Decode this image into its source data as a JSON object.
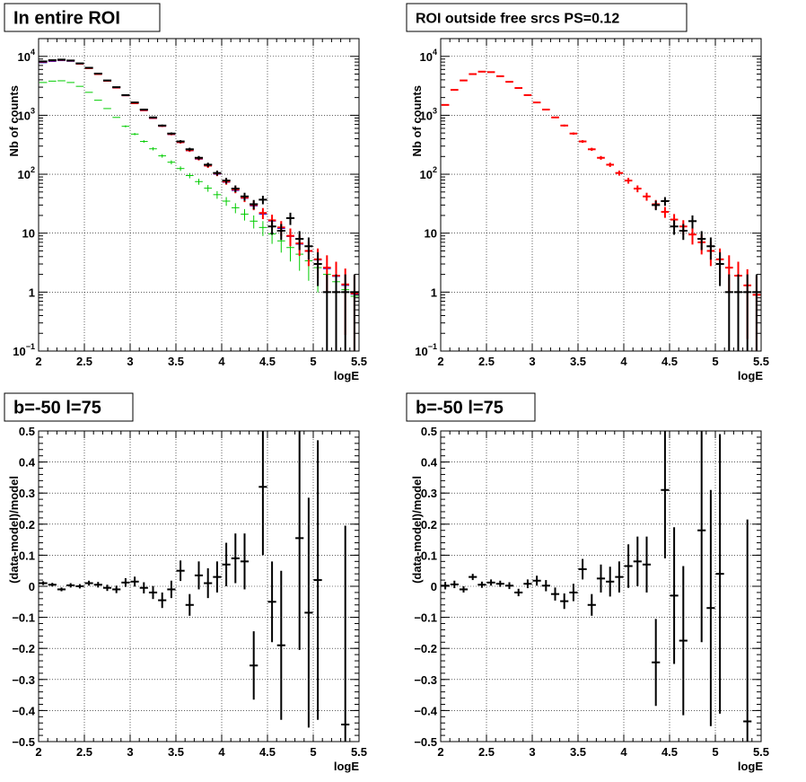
{
  "chart_data": [
    {
      "type": "scatter",
      "title": "In entire ROI",
      "xlabel": "logE",
      "ylabel": "Nb of counts",
      "xlim": [
        2,
        5.5
      ],
      "ylim": [
        0.1,
        20000
      ],
      "yscale": "log",
      "grid": true,
      "xticks": [
        "2",
        "2.5",
        "3",
        "3.5",
        "4",
        "4.5",
        "5",
        "5.5"
      ],
      "yticks": [
        {
          "value": 0.1,
          "mant": "10",
          "exp": "−1"
        },
        {
          "value": 1,
          "mant": "1",
          "exp": ""
        },
        {
          "value": 10,
          "mant": "10",
          "exp": ""
        },
        {
          "value": 100,
          "mant": "10",
          "exp": "2"
        },
        {
          "value": 1000,
          "mant": "10",
          "exp": "3"
        },
        {
          "value": 10000,
          "mant": "10",
          "exp": "4"
        }
      ],
      "colors": {
        "data": "#000000",
        "model": "#ff0000",
        "component_blue": "#0000ff",
        "component_green": "#00cc00"
      },
      "x": [
        2.05,
        2.15,
        2.25,
        2.35,
        2.45,
        2.55,
        2.65,
        2.75,
        2.85,
        2.95,
        3.05,
        3.15,
        3.25,
        3.35,
        3.45,
        3.55,
        3.65,
        3.75,
        3.85,
        3.95,
        4.05,
        4.15,
        4.25,
        4.35,
        4.45,
        4.55,
        4.65,
        4.75,
        4.85,
        4.95,
        5.05,
        5.15,
        5.25,
        5.35,
        5.45
      ],
      "series": [
        {
          "role": "data",
          "values": [
            8200,
            8600,
            8800,
            8500,
            7600,
            6400,
            5100,
            3900,
            3000,
            2200,
            1650,
            1250,
            920,
            670,
            490,
            360,
            265,
            190,
            145,
            105,
            78,
            57,
            42,
            31,
            23,
            17,
            13,
            9.5,
            7,
            5,
            3.6,
            2.6,
            1.9,
            1.3,
            0.9
          ]
        },
        {
          "role": "model",
          "values": [
            8100,
            8500,
            8700,
            8450,
            7500,
            6300,
            5000,
            3850,
            2950,
            2180,
            1600,
            1220,
            900,
            660,
            480,
            350,
            255,
            185,
            140,
            103,
            75,
            55,
            40,
            30,
            22,
            16.5,
            12.5,
            9,
            6.7,
            5,
            3.6,
            2.6,
            1.9,
            1.35,
            0.95
          ]
        },
        {
          "role": "component_blue",
          "values": [
            7800,
            8200,
            8450,
            8250,
            7400,
            6250,
            4950,
            3800,
            2900,
            2150,
            1580,
            1200,
            880,
            650,
            470,
            345,
            250,
            180,
            138,
            100,
            73,
            53,
            39,
            29,
            21,
            16,
            12,
            8.8,
            6.5,
            4.9,
            3.5,
            2.5,
            1.85,
            1.3,
            0.92
          ]
        },
        {
          "role": "component_green",
          "values": [
            3600,
            3800,
            3850,
            3600,
            3100,
            2450,
            1800,
            1300,
            920,
            650,
            480,
            360,
            270,
            205,
            160,
            125,
            95,
            75,
            58,
            45,
            35,
            27,
            21,
            16,
            12.5,
            9.7,
            7.4,
            5.7,
            4.4,
            3.4,
            2.6,
            2,
            1.5,
            1.1,
            0.85
          ]
        }
      ],
      "data_points": [
        {
          "x": 2.05,
          "y": 8200
        },
        {
          "x": 2.15,
          "y": 8600
        },
        {
          "x": 2.25,
          "y": 8800
        },
        {
          "x": 2.35,
          "y": 8500
        },
        {
          "x": 2.45,
          "y": 7600
        },
        {
          "x": 2.55,
          "y": 6400
        },
        {
          "x": 2.65,
          "y": 5100
        },
        {
          "x": 2.75,
          "y": 3900
        },
        {
          "x": 2.85,
          "y": 3000
        },
        {
          "x": 2.95,
          "y": 2200
        },
        {
          "x": 3.05,
          "y": 1650
        },
        {
          "x": 3.15,
          "y": 1250
        },
        {
          "x": 3.25,
          "y": 920
        },
        {
          "x": 3.35,
          "y": 670
        },
        {
          "x": 3.45,
          "y": 490
        },
        {
          "x": 3.55,
          "y": 360
        },
        {
          "x": 3.65,
          "y": 265
        },
        {
          "x": 3.75,
          "y": 190
        },
        {
          "x": 3.85,
          "y": 145
        },
        {
          "x": 3.95,
          "y": 105
        },
        {
          "x": 4.05,
          "y": 78
        },
        {
          "x": 4.15,
          "y": 57
        },
        {
          "x": 4.25,
          "y": 42
        },
        {
          "x": 4.35,
          "y": 31
        },
        {
          "x": 4.45,
          "y": 37
        },
        {
          "x": 4.55,
          "y": 13
        },
        {
          "x": 4.65,
          "y": 11
        },
        {
          "x": 4.75,
          "y": 18
        },
        {
          "x": 4.85,
          "y": 8
        },
        {
          "x": 4.95,
          "y": 6
        },
        {
          "x": 5.05,
          "y": 3
        },
        {
          "x": 5.15,
          "y": 1
        },
        {
          "x": 5.25,
          "y": 1
        },
        {
          "x": 5.35,
          "y": 1
        },
        {
          "x": 5.45,
          "y": 1
        }
      ]
    },
    {
      "type": "scatter",
      "title": "ROI outside free srcs PS=0.12",
      "xlabel": "logE",
      "ylabel": "Nb of counts",
      "xlim": [
        2,
        5.5
      ],
      "ylim": [
        0.1,
        20000
      ],
      "yscale": "log",
      "grid": true,
      "xticks": [
        "2",
        "2.5",
        "3",
        "3.5",
        "4",
        "4.5",
        "5",
        "5.5"
      ],
      "yticks": [
        {
          "value": 0.1,
          "mant": "10",
          "exp": "−1"
        },
        {
          "value": 1,
          "mant": "1",
          "exp": ""
        },
        {
          "value": 10,
          "mant": "10",
          "exp": ""
        },
        {
          "value": 100,
          "mant": "10",
          "exp": "2"
        },
        {
          "value": 1000,
          "mant": "10",
          "exp": "3"
        },
        {
          "value": 10000,
          "mant": "10",
          "exp": "4"
        }
      ],
      "colors": {
        "data": "#000000",
        "model": "#ff0000"
      },
      "x": [
        2.05,
        2.15,
        2.25,
        2.35,
        2.45,
        2.55,
        2.65,
        2.75,
        2.85,
        2.95,
        3.05,
        3.15,
        3.25,
        3.35,
        3.45,
        3.55,
        3.65,
        3.75,
        3.85,
        3.95,
        4.05,
        4.15,
        4.25,
        4.35,
        4.45,
        4.55,
        4.65,
        4.75,
        4.85,
        4.95,
        5.05,
        5.15,
        5.25,
        5.35,
        5.45
      ],
      "series": [
        {
          "role": "model",
          "values": [
            1500,
            2700,
            3900,
            5000,
            5500,
            5400,
            4600,
            3700,
            2900,
            2200,
            1650,
            1250,
            920,
            670,
            490,
            360,
            265,
            190,
            145,
            105,
            78,
            57,
            42,
            31,
            23,
            17,
            13,
            9.5,
            7,
            5,
            3.6,
            2.6,
            1.9,
            1.3,
            0.9
          ]
        }
      ],
      "data_points": [
        {
          "x": 4.35,
          "y": 30
        },
        {
          "x": 4.45,
          "y": 35
        },
        {
          "x": 4.55,
          "y": 13
        },
        {
          "x": 4.65,
          "y": 11
        },
        {
          "x": 4.75,
          "y": 16
        },
        {
          "x": 4.85,
          "y": 8
        },
        {
          "x": 4.95,
          "y": 6
        },
        {
          "x": 5.05,
          "y": 3
        },
        {
          "x": 5.15,
          "y": 1
        },
        {
          "x": 5.25,
          "y": 1
        },
        {
          "x": 5.35,
          "y": 1
        },
        {
          "x": 5.45,
          "y": 1
        }
      ]
    },
    {
      "type": "scatter",
      "title": "b=-50 l=75",
      "xlabel": "logE",
      "ylabel": "(data-model)/model",
      "xlim": [
        2,
        5.5
      ],
      "ylim": [
        -0.5,
        0.5
      ],
      "yscale": "linear",
      "grid": true,
      "xticks": [
        "2",
        "2.5",
        "3",
        "3.5",
        "4",
        "4.5",
        "5",
        "5.5"
      ],
      "yticks": [
        "−0.5",
        "−0.4",
        "−0.3",
        "−0.2",
        "−0.1",
        "0",
        "0.1",
        "0.2",
        "0.3",
        "0.4",
        "0.5"
      ],
      "colors": {
        "data": "#000000"
      },
      "points": [
        {
          "x": 2.05,
          "y": 0.01,
          "err": 0.006
        },
        {
          "x": 2.15,
          "y": 0.005,
          "err": 0.006
        },
        {
          "x": 2.25,
          "y": -0.01,
          "err": 0.006
        },
        {
          "x": 2.35,
          "y": 0.003,
          "err": 0.007
        },
        {
          "x": 2.45,
          "y": 0.0,
          "err": 0.007
        },
        {
          "x": 2.55,
          "y": 0.01,
          "err": 0.008
        },
        {
          "x": 2.65,
          "y": 0.005,
          "err": 0.009
        },
        {
          "x": 2.75,
          "y": -0.005,
          "err": 0.01
        },
        {
          "x": 2.85,
          "y": -0.01,
          "err": 0.012
        },
        {
          "x": 2.95,
          "y": 0.012,
          "err": 0.014
        },
        {
          "x": 3.05,
          "y": 0.015,
          "err": 0.016
        },
        {
          "x": 3.15,
          "y": -0.005,
          "err": 0.018
        },
        {
          "x": 3.25,
          "y": -0.02,
          "err": 0.021
        },
        {
          "x": 3.35,
          "y": -0.045,
          "err": 0.025
        },
        {
          "x": 3.45,
          "y": -0.01,
          "err": 0.028
        },
        {
          "x": 3.55,
          "y": 0.05,
          "err": 0.033
        },
        {
          "x": 3.65,
          "y": -0.06,
          "err": 0.035
        },
        {
          "x": 3.75,
          "y": 0.035,
          "err": 0.045
        },
        {
          "x": 3.85,
          "y": 0.01,
          "err": 0.048
        },
        {
          "x": 3.95,
          "y": 0.03,
          "err": 0.05
        },
        {
          "x": 4.05,
          "y": 0.07,
          "err": 0.07
        },
        {
          "x": 4.15,
          "y": 0.09,
          "err": 0.08
        },
        {
          "x": 4.25,
          "y": 0.08,
          "err": 0.09
        },
        {
          "x": 4.35,
          "y": -0.255,
          "err": 0.11
        },
        {
          "x": 4.45,
          "y": 0.32,
          "err": 0.22
        },
        {
          "x": 4.55,
          "y": -0.05,
          "err": 0.13
        },
        {
          "x": 4.65,
          "y": -0.19,
          "err": 0.24
        },
        {
          "x": 4.85,
          "y": 0.155,
          "err": 0.36
        },
        {
          "x": 4.95,
          "y": -0.085,
          "err": 0.37
        },
        {
          "x": 5.05,
          "y": 0.02,
          "err": 0.45
        },
        {
          "x": 5.35,
          "y": -0.445,
          "err": 0.64
        }
      ]
    },
    {
      "type": "scatter",
      "title": "b=-50 l=75",
      "xlabel": "logE",
      "ylabel": "(data-model)/model",
      "xlim": [
        2,
        5.5
      ],
      "ylim": [
        -0.5,
        0.5
      ],
      "yscale": "linear",
      "grid": true,
      "xticks": [
        "2",
        "2.5",
        "3",
        "3.5",
        "4",
        "4.5",
        "5",
        "5.5"
      ],
      "yticks": [
        "−0.5",
        "−0.4",
        "−0.3",
        "−0.2",
        "−0.1",
        "0",
        "0.1",
        "0.2",
        "0.3",
        "0.4",
        "0.5"
      ],
      "colors": {
        "data": "#000000"
      },
      "points": [
        {
          "x": 2.05,
          "y": 0.002,
          "err": 0.012
        },
        {
          "x": 2.15,
          "y": 0.006,
          "err": 0.012
        },
        {
          "x": 2.25,
          "y": -0.01,
          "err": 0.01
        },
        {
          "x": 2.35,
          "y": 0.03,
          "err": 0.01
        },
        {
          "x": 2.45,
          "y": 0.005,
          "err": 0.01
        },
        {
          "x": 2.55,
          "y": 0.012,
          "err": 0.01
        },
        {
          "x": 2.65,
          "y": 0.008,
          "err": 0.01
        },
        {
          "x": 2.75,
          "y": 0.002,
          "err": 0.011
        },
        {
          "x": 2.85,
          "y": -0.02,
          "err": 0.012
        },
        {
          "x": 2.95,
          "y": 0.008,
          "err": 0.014
        },
        {
          "x": 3.05,
          "y": 0.018,
          "err": 0.016
        },
        {
          "x": 3.15,
          "y": 0.002,
          "err": 0.018
        },
        {
          "x": 3.25,
          "y": -0.025,
          "err": 0.021
        },
        {
          "x": 3.35,
          "y": -0.048,
          "err": 0.025
        },
        {
          "x": 3.45,
          "y": -0.02,
          "err": 0.028
        },
        {
          "x": 3.55,
          "y": 0.055,
          "err": 0.033
        },
        {
          "x": 3.65,
          "y": -0.06,
          "err": 0.035
        },
        {
          "x": 3.75,
          "y": 0.025,
          "err": 0.045
        },
        {
          "x": 3.85,
          "y": 0.015,
          "err": 0.048
        },
        {
          "x": 3.95,
          "y": 0.03,
          "err": 0.05
        },
        {
          "x": 4.05,
          "y": 0.065,
          "err": 0.07
        },
        {
          "x": 4.15,
          "y": 0.08,
          "err": 0.08
        },
        {
          "x": 4.25,
          "y": 0.07,
          "err": 0.09
        },
        {
          "x": 4.35,
          "y": -0.245,
          "err": 0.14
        },
        {
          "x": 4.45,
          "y": 0.31,
          "err": 0.22
        },
        {
          "x": 4.55,
          "y": -0.03,
          "err": 0.22
        },
        {
          "x": 4.65,
          "y": -0.175,
          "err": 0.24
        },
        {
          "x": 4.85,
          "y": 0.18,
          "err": 0.36
        },
        {
          "x": 4.95,
          "y": -0.07,
          "err": 0.38
        },
        {
          "x": 5.05,
          "y": 0.04,
          "err": 0.45
        },
        {
          "x": 5.35,
          "y": -0.435,
          "err": 0.65
        }
      ]
    }
  ]
}
